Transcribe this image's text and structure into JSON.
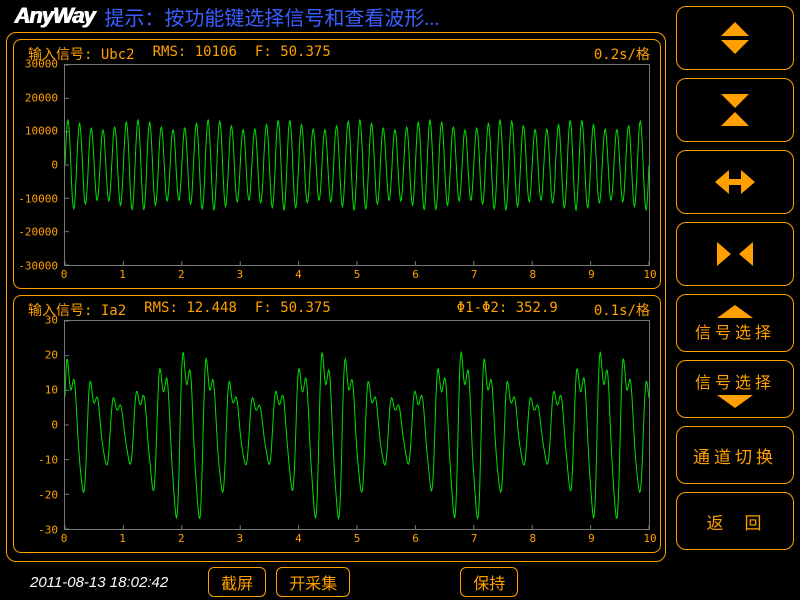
{
  "logo_text": "AnyWay",
  "hint_prefix": "提示：",
  "hint_text": "按功能键选择信号和查看波形...",
  "timestamp": "2011-08-13 18:02:42",
  "colors": {
    "accent": "#ffa000",
    "waveform": "#00e000",
    "hint": "#3a5fff",
    "tick": "#777777",
    "bg": "#000000"
  },
  "chart1": {
    "signal_label": "输入信号:",
    "signal_name": "Ubc2",
    "rms_label": "RMS:",
    "rms_value": "10106",
    "f_label": "F:",
    "f_value": "50.375",
    "time_div": "0.2s/格",
    "xlim": [
      0,
      10
    ],
    "xtick_step": 1,
    "ylim": [
      -30000,
      30000
    ],
    "ytick_step": 10000,
    "waveform": {
      "type": "modulated_sine",
      "carrier_freq_per_x": 5.0,
      "envelope_max": 13500,
      "envelope_min": 10500,
      "envelope_beats": 8
    }
  },
  "chart2": {
    "signal_label": "输入信号:",
    "signal_name": "Ia2",
    "rms_label": "RMS:",
    "rms_value": "12.448",
    "f_label": "F:",
    "f_value": "50.375",
    "phase_label": "Φ1-Φ2:",
    "phase_value": "352.9",
    "time_div": "0.1s/格",
    "xlim": [
      0,
      10
    ],
    "xtick_step": 1,
    "ylim": [
      -30,
      30
    ],
    "ytick_step": 10,
    "waveform": {
      "type": "modulated_sine_harmonic",
      "base_freq_per_x": 2.52,
      "harmonic2_amp_ratio": 0.35,
      "harmonic3_amp_ratio": 0.18,
      "envelope_max": 22,
      "envelope_min": 8,
      "envelope_beats": 4.2
    }
  },
  "right_buttons": {
    "signal_select": "信号选择",
    "channel_switch": "通道切换",
    "back": "返　回"
  },
  "bottom_buttons": {
    "screenshot": "截屏",
    "acquire": "开采集",
    "hold": "保持"
  }
}
